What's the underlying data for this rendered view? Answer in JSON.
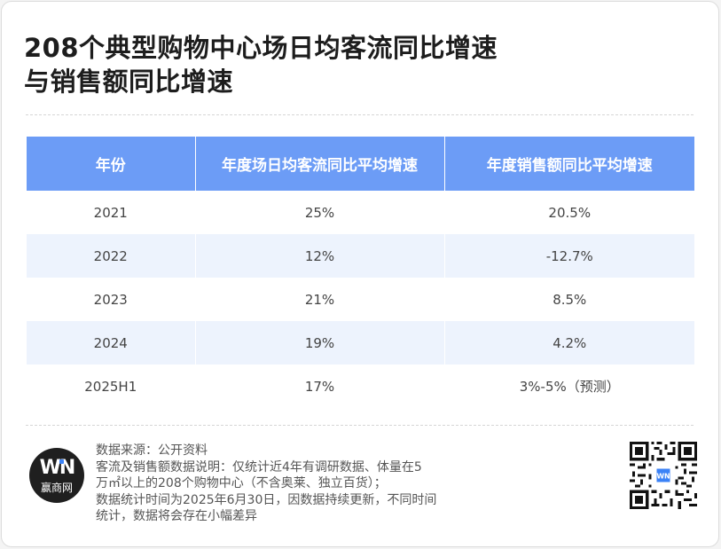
{
  "title": {
    "line1": "208个典型购物中心场日均客流同比增速",
    "line2": "与销售额同比增速"
  },
  "table": {
    "headers": [
      "年份",
      "年度场日均客流同比平均增速",
      "年度销售额同比平均增速"
    ],
    "rows": [
      [
        "2021",
        "25%",
        "20.5%"
      ],
      [
        "2022",
        "12%",
        "-12.7%"
      ],
      [
        "2023",
        "21%",
        "8.5%"
      ],
      [
        "2024",
        "19%",
        "4.2%"
      ],
      [
        "2025H1",
        "17%",
        "3%-5%（预测）"
      ]
    ]
  },
  "brand": {
    "logo_text": "WN",
    "name": "赢商网",
    "logo_icon": "winshang-logo-icon",
    "qr_icon": "qr-code-icon",
    "accent_color": "#6c9cf6"
  },
  "notes": [
    "数据来源：公开资料",
    "客流及销售额数据说明：仅统计近4年有调研数据、体量在5",
    "万㎡以上的208个购物中心（不含奥莱、独立百货）；",
    "数据统计时间为2025年6月30日，因数据持续更新，不同时间",
    "统计，数据将会存在小幅差异"
  ]
}
